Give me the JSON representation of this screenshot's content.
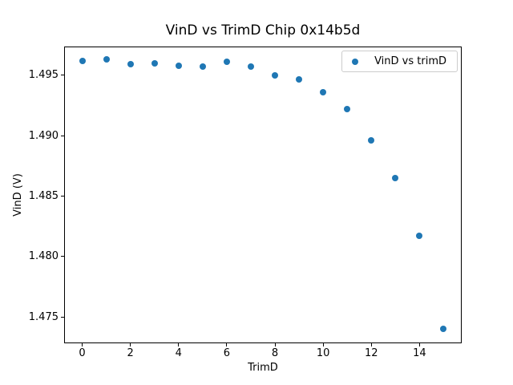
{
  "window": {
    "background": "#ffffff"
  },
  "chart_data": {
    "type": "scatter",
    "title": "VinD vs TrimD Chip 0x14b5d",
    "xlabel": "TrimD",
    "ylabel": "VinD (V)",
    "legend_entries": [
      "VinD vs trimD"
    ],
    "legend_position": "upper right",
    "grid": false,
    "marker": "circle",
    "marker_color": "#1f77b4",
    "x": [
      0,
      1,
      2,
      3,
      4,
      5,
      6,
      7,
      8,
      9,
      10,
      11,
      12,
      13,
      14,
      15
    ],
    "y": [
      1.4962,
      1.4963,
      1.4959,
      1.496,
      1.4958,
      1.4957,
      1.4961,
      1.4957,
      1.495,
      1.4947,
      1.4936,
      1.4922,
      1.4896,
      1.4865,
      1.4817,
      1.474
    ],
    "xticks": [
      0,
      2,
      4,
      6,
      8,
      10,
      12,
      14
    ],
    "yticks": [
      1.475,
      1.48,
      1.485,
      1.49,
      1.495
    ],
    "xlim": [
      -0.75,
      15.75
    ],
    "ylim": [
      1.472885,
      1.497415
    ]
  }
}
